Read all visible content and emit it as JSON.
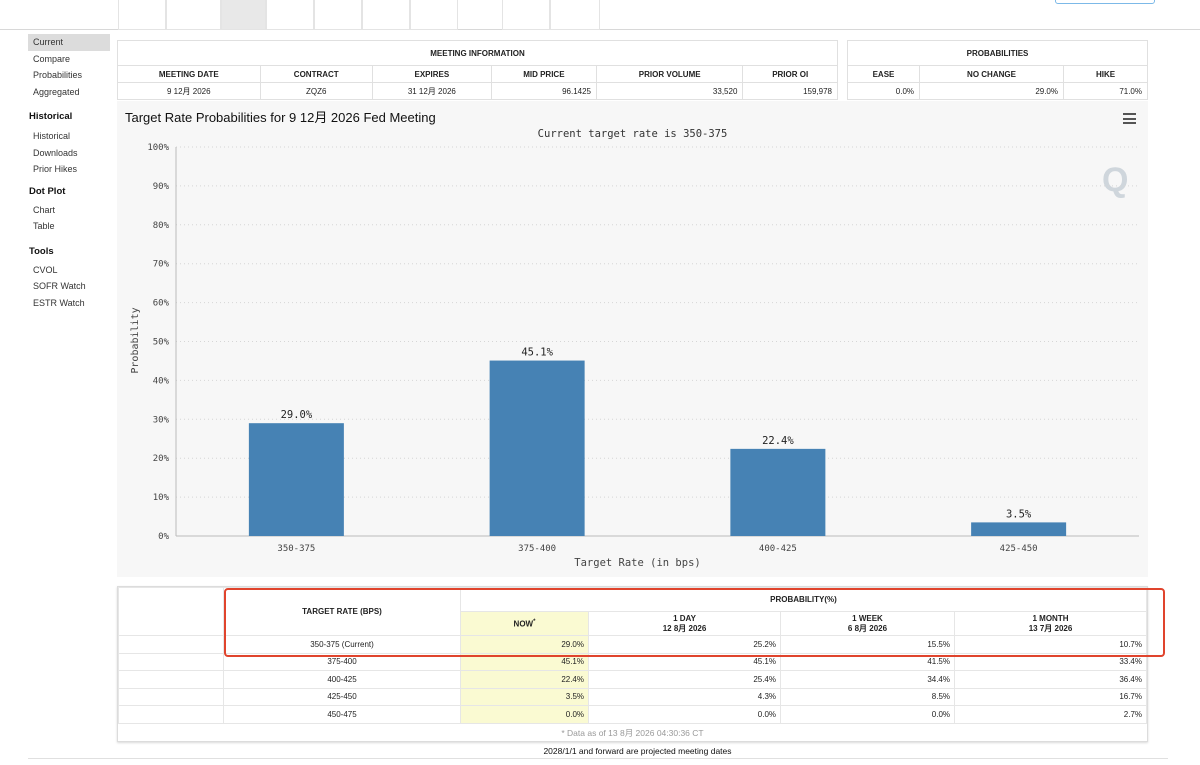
{
  "sidebar": {
    "items_top": [
      "Current",
      "Compare",
      "Probabilities",
      "Aggregated"
    ],
    "sections": [
      {
        "heading": "Historical",
        "items": [
          "Historical",
          "Downloads",
          "Prior Hikes"
        ]
      },
      {
        "heading": "Dot Plot",
        "items": [
          "Chart",
          "Table"
        ]
      },
      {
        "heading": "Tools",
        "items": [
          "CVOL",
          "SOFR Watch",
          "ESTR Watch"
        ]
      }
    ]
  },
  "meeting_info": {
    "caption": "MEETING INFORMATION",
    "headers": [
      "MEETING DATE",
      "CONTRACT",
      "EXPIRES",
      "MID PRICE",
      "PRIOR VOLUME",
      "PRIOR OI"
    ],
    "row": [
      "9 12月 2026",
      "ZQZ6",
      "31 12月 2026",
      "96.1425",
      "33,520",
      "159,978"
    ]
  },
  "probabilities": {
    "caption": "PROBABILITIES",
    "headers": [
      "EASE",
      "NO CHANGE",
      "HIKE"
    ],
    "row": [
      "0.0%",
      "29.0%",
      "71.0%"
    ]
  },
  "chart": {
    "title": "Target Rate Probabilities for 9 12月 2026 Fed Meeting",
    "subtitle": "Current target rate is 350-375",
    "logo_text": "Q"
  },
  "chart_data": {
    "type": "bar",
    "title": "Target Rate Probabilities for 9 12月 2026 Fed Meeting",
    "subtitle": "Current target rate is 350-375",
    "categories": [
      "350-375",
      "375-400",
      "400-425",
      "425-450"
    ],
    "values": [
      29.0,
      45.1,
      22.4,
      3.5
    ],
    "value_labels": [
      "29.0%",
      "45.1%",
      "22.4%",
      "3.5%"
    ],
    "xlabel": "Target Rate (in bps)",
    "ylabel": "Probability",
    "ylim": [
      0,
      100
    ],
    "yticks": [
      "0%",
      "10%",
      "20%",
      "30%",
      "40%",
      "50%",
      "60%",
      "70%",
      "80%",
      "90%",
      "100%"
    ],
    "grid": true,
    "bar_color": "#4682b4"
  },
  "rate_table": {
    "col_target": "TARGET RATE (BPS)",
    "col_probability": "PROBABILITY(%)",
    "now_label": "NOW",
    "now_marker": "*",
    "periods": [
      {
        "label": "1 DAY",
        "date": "12 8月 2026"
      },
      {
        "label": "1 WEEK",
        "date": "6 8月 2026"
      },
      {
        "label": "1 MONTH",
        "date": "13 7月 2026"
      }
    ],
    "rows": [
      {
        "rate": "350-375 (Current)",
        "now": "29.0%",
        "day": "25.2%",
        "week": "15.5%",
        "month": "10.7%"
      },
      {
        "rate": "375-400",
        "now": "45.1%",
        "day": "45.1%",
        "week": "41.5%",
        "month": "33.4%"
      },
      {
        "rate": "400-425",
        "now": "22.4%",
        "day": "25.4%",
        "week": "34.4%",
        "month": "36.4%"
      },
      {
        "rate": "425-450",
        "now": "3.5%",
        "day": "4.3%",
        "week": "8.5%",
        "month": "16.7%"
      },
      {
        "rate": "450-475",
        "now": "0.0%",
        "day": "0.0%",
        "week": "0.0%",
        "month": "2.7%"
      }
    ],
    "data_note": "* Data as of 13 8月 2026 04:30:36 CT"
  },
  "footer": {
    "projected_note": "2028/1/1 and forward are projected meeting dates"
  },
  "colors": {
    "bar": "#4682b4",
    "now_column": "#fafad2",
    "highlight": "#e0442d"
  }
}
